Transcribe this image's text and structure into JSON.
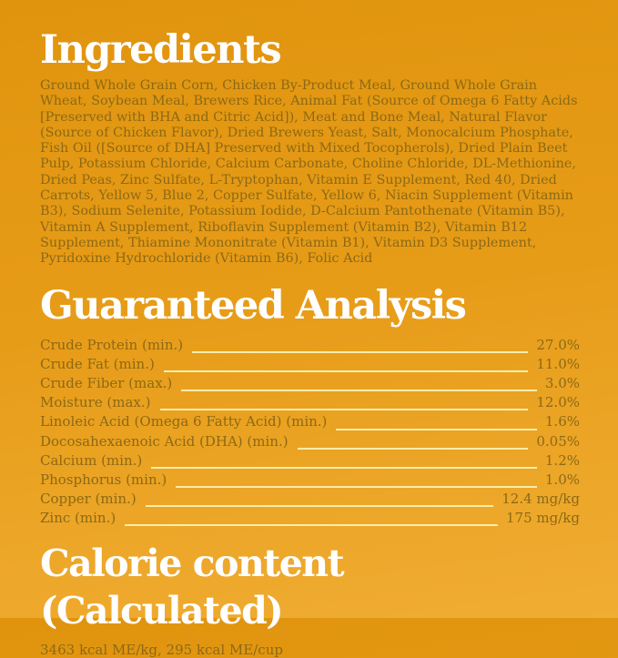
{
  "colors": {
    "background_top": "#e0940e",
    "background_bottom": "#f0ad33",
    "heading_text": "#ffffff",
    "body_text": "#8c6914",
    "leader_line": "#f8eda9"
  },
  "ingredients": {
    "title": "Ingredients",
    "text": "Ground Whole Grain Corn, Chicken By-Product Meal, Ground Whole Grain Wheat, Soybean Meal, Brewers Rice, Animal Fat (Source of Omega 6 Fatty Acids [Preserved with BHA and Citric Acid]), Meat and Bone Meal, Natural Flavor (Source of Chicken Flavor), Dried Brewers Yeast, Salt, Monocalcium Phosphate, Fish Oil ([Source of DHA] Preserved with Mixed Tocopherols), Dried Plain Beet Pulp, Potassium Chloride, Calcium Carbonate, Choline Chloride, DL-Methionine, Dried Peas, Zinc Sulfate, L-Tryptophan, Vitamin E Supplement, Red 40, Dried Carrots, Yellow 5, Blue 2, Copper Sulfate, Yellow 6, Niacin Supplement (Vitamin B3), Sodium Selenite, Potassium Iodide, D-Calcium Pantothenate (Vitamin B5), Vitamin A Supplement, Riboflavin Supplement (Vitamin B2), Vitamin B12 Supplement, Thiamine Mononitrate (Vitamin B1), Vitamin D3 Supplement, Pyridoxine Hydrochloride (Vitamin B6), Folic Acid"
  },
  "guaranteed_analysis": {
    "title": "Guaranteed Analysis",
    "rows": [
      {
        "label": "Crude Protein (min.)",
        "value": "27.0%"
      },
      {
        "label": "Crude Fat (min.)",
        "value": "11.0%"
      },
      {
        "label": "Crude Fiber (max.)",
        "value": "3.0%"
      },
      {
        "label": "Moisture (max.)",
        "value": "12.0%"
      },
      {
        "label": "Linoleic Acid (Omega 6 Fatty Acid) (min.)",
        "value": "1.6%"
      },
      {
        "label": "Docosahexaenoic Acid (DHA) (min.)",
        "value": "0.05%"
      },
      {
        "label": "Calcium (min.)",
        "value": "1.2%"
      },
      {
        "label": "Phosphorus (min.)",
        "value": "1.0%"
      },
      {
        "label": "Copper (min.)",
        "value": "12.4 mg/kg"
      },
      {
        "label": "Zinc (min.)",
        "value": "175 mg/kg"
      }
    ]
  },
  "calorie_content": {
    "title": "Calorie content  (Calculated)",
    "text": "3463 kcal ME/kg, 295 kcal ME/cup"
  }
}
